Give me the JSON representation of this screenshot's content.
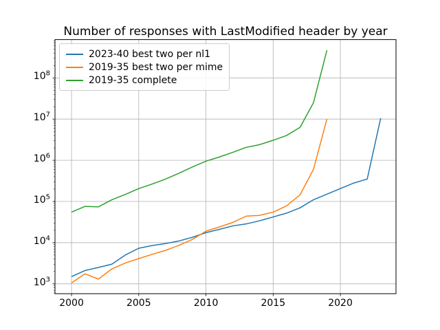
{
  "figure": {
    "title": "Number of responses with LastModified header by year",
    "background_color": "#ffffff",
    "grid_color": "#b0b0b0",
    "spine_color": "#000000",
    "text_color": "#000000"
  },
  "chart_data": {
    "type": "line",
    "title": "Number of responses with LastModified header by year",
    "xlabel": "",
    "ylabel": "",
    "grid": true,
    "legend_position": "upper-left",
    "x_axis": {
      "min": 1998.77,
      "max": 2024.14,
      "ticks": [
        2000,
        2005,
        2010,
        2015,
        2020
      ]
    },
    "y_axis": {
      "scale": "log",
      "base": 10,
      "min_log10": 2.76,
      "max_log10": 8.93,
      "tick_exponents": [
        3,
        4,
        5,
        6,
        7,
        8
      ]
    },
    "series": [
      {
        "name": "2023-40 best two per nl1",
        "color": "#1f77b4",
        "points": [
          [
            2000,
            1500
          ],
          [
            2001,
            2100
          ],
          [
            2002,
            2500
          ],
          [
            2003,
            3000
          ],
          [
            2004,
            5000
          ],
          [
            2005,
            7300
          ],
          [
            2006,
            8500
          ],
          [
            2007,
            9500
          ],
          [
            2008,
            11000
          ],
          [
            2009,
            13500
          ],
          [
            2010,
            17500
          ],
          [
            2011,
            21000
          ],
          [
            2012,
            25500
          ],
          [
            2013,
            28500
          ],
          [
            2014,
            34000
          ],
          [
            2015,
            42000
          ],
          [
            2016,
            52000
          ],
          [
            2017,
            70000
          ],
          [
            2018,
            110000
          ],
          [
            2019,
            150000
          ],
          [
            2020,
            205000
          ],
          [
            2021,
            280000
          ],
          [
            2022,
            350000
          ],
          [
            2023,
            10500000
          ]
        ]
      },
      {
        "name": "2019-35 best two per mime",
        "color": "#ff7f0e",
        "points": [
          [
            2000,
            1050
          ],
          [
            2001,
            1750
          ],
          [
            2002,
            1300
          ],
          [
            2003,
            2300
          ],
          [
            2004,
            3200
          ],
          [
            2005,
            4100
          ],
          [
            2006,
            5200
          ],
          [
            2007,
            6500
          ],
          [
            2008,
            8600
          ],
          [
            2009,
            12000
          ],
          [
            2010,
            19000
          ],
          [
            2011,
            24000
          ],
          [
            2012,
            31000
          ],
          [
            2013,
            44000
          ],
          [
            2014,
            46000
          ],
          [
            2015,
            55000
          ],
          [
            2016,
            78000
          ],
          [
            2017,
            145000
          ],
          [
            2018,
            600000
          ],
          [
            2019,
            10000000
          ]
        ]
      },
      {
        "name": "2019-35 complete",
        "color": "#2ca02c",
        "points": [
          [
            2000,
            55000
          ],
          [
            2001,
            76000
          ],
          [
            2002,
            74000
          ],
          [
            2003,
            110000
          ],
          [
            2004,
            148000
          ],
          [
            2005,
            205000
          ],
          [
            2006,
            265000
          ],
          [
            2007,
            350000
          ],
          [
            2008,
            485000
          ],
          [
            2009,
            690000
          ],
          [
            2010,
            950000
          ],
          [
            2011,
            1200000
          ],
          [
            2012,
            1560000
          ],
          [
            2013,
            2060000
          ],
          [
            2014,
            2400000
          ],
          [
            2015,
            3060000
          ],
          [
            2016,
            4000000
          ],
          [
            2017,
            6300000
          ],
          [
            2018,
            25000000
          ],
          [
            2019,
            470000000
          ]
        ]
      }
    ]
  }
}
